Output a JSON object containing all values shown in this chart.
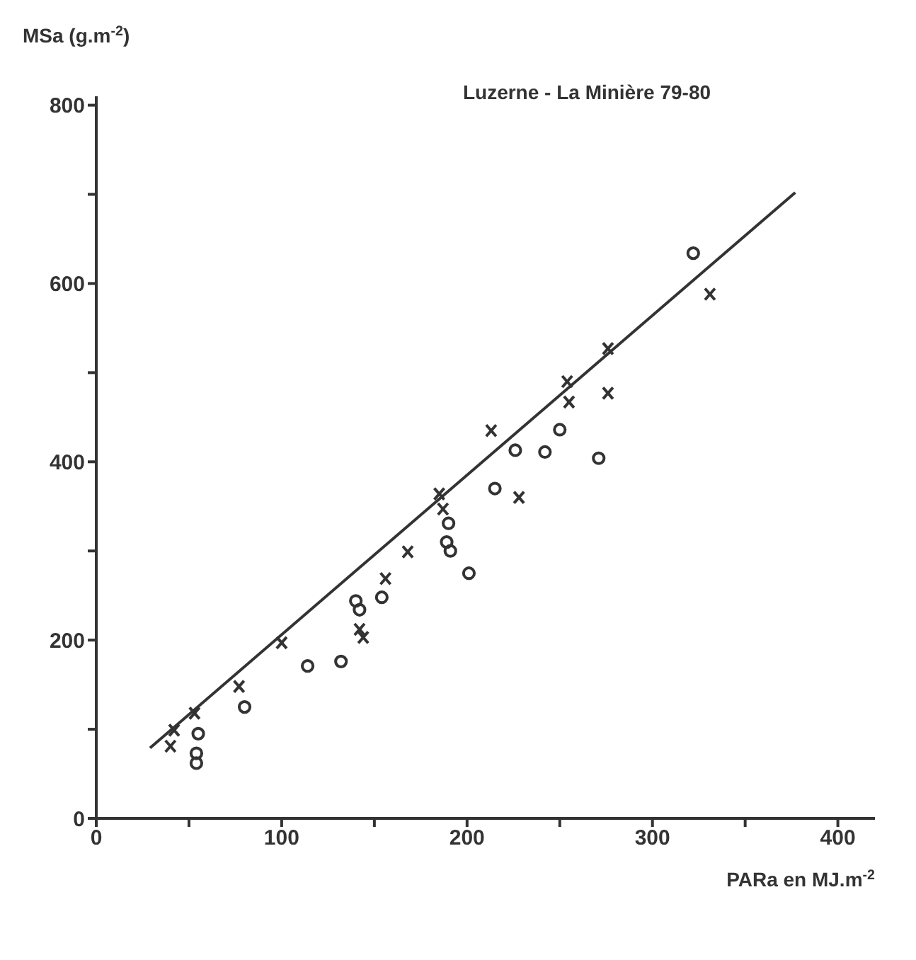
{
  "chart_data": {
    "type": "scatter",
    "title": "Luzerne - La Minière 79-80",
    "xlabel": "PARa en MJ.m$^{-2}$",
    "ylabel": "MSa (g.m$^{-2}$)",
    "xlim": [
      0,
      420
    ],
    "ylim": [
      0,
      810
    ],
    "xticks": [
      0,
      {
        "value": 50,
        "label": null
      },
      100,
      {
        "value": 150,
        "label": null
      },
      200,
      {
        "value": 250,
        "label": null
      },
      300,
      {
        "value": 350,
        "label": null
      },
      400
    ],
    "yticks": [
      0,
      {
        "value": 100,
        "label": null
      },
      200,
      {
        "value": 300,
        "label": null
      },
      400,
      {
        "value": 500,
        "label": null
      },
      600,
      {
        "value": 700,
        "label": null
      },
      800
    ],
    "series": [
      {
        "marker": "cross",
        "color": "#333333",
        "x": [
          40,
          42,
          53,
          77,
          100,
          142,
          144,
          156,
          168,
          185,
          187,
          213,
          228,
          255,
          254,
          276,
          276,
          331
        ],
        "values": [
          81,
          99,
          118,
          148,
          197,
          212,
          203,
          269,
          299,
          364,
          347,
          435,
          360,
          467,
          490,
          477,
          527,
          588
        ]
      },
      {
        "marker": "circle",
        "color": "#333333",
        "x": [
          55,
          54,
          54,
          80,
          114,
          132,
          140,
          142,
          154,
          190,
          189,
          191,
          201,
          215,
          226,
          242,
          250,
          271,
          322
        ],
        "values": [
          95,
          73,
          62,
          125,
          171,
          176,
          244,
          234,
          248,
          331,
          310,
          300,
          275,
          370,
          413,
          411,
          436,
          404,
          634
        ]
      },
      {
        "type": "line",
        "marker": "none",
        "line_style": "solid",
        "color": "#333333",
        "x": [
          29,
          377
        ],
        "values": [
          79,
          702
        ]
      }
    ]
  }
}
